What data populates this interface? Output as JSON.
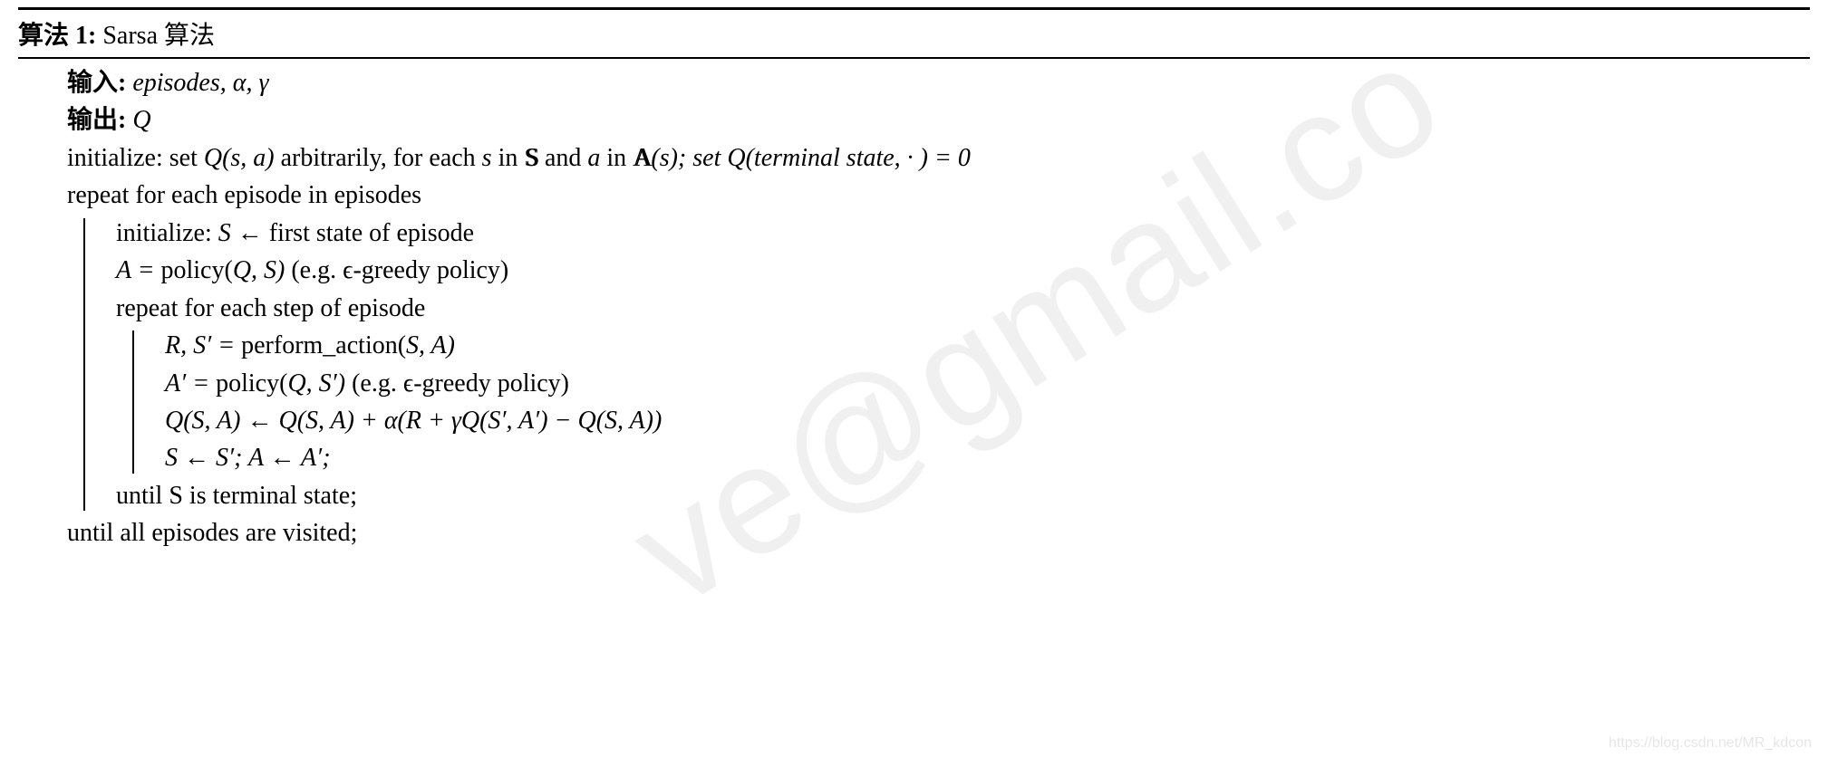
{
  "header": {
    "algo_label": "算法",
    "algo_num": "1:",
    "algo_name": "Sarsa 算法"
  },
  "io": {
    "input_label": "输入:",
    "input_value": "episodes, α,  γ",
    "output_label": "输出:",
    "output_value": "Q"
  },
  "lines": {
    "init_prefix": "initialize: set ",
    "init_q": "Q(s, a)",
    "init_mid": " arbitrarily, for each ",
    "init_s": "s",
    "init_in1": " in ",
    "init_and": " and ",
    "init_a": "a",
    "init_in2": " in ",
    "init_As": "(s);  set ",
    "init_qterm": "Q(terminal state, · ) = 0",
    "repeat_outer": "repeat for each episode in episodes",
    "init_S": "initialize: ",
    "init_S_expr": "S ← ",
    "init_S_rest": "first state of episode",
    "A_line_pre": "A = ",
    "A_line_policy": "policy(",
    "A_line_args": "Q, S)",
    "A_line_post": " (e.g. ϵ-greedy policy)",
    "repeat_inner": "repeat for each step of episode",
    "perf_pre": "R, S′ = ",
    "perf_fn": "perform_action(",
    "perf_args": "S, A)",
    "Aprime_pre": "A′ = ",
    "Aprime_policy": "policy(",
    "Aprime_args": "Q, S′)",
    "Aprime_post": " (e.g. ϵ-greedy policy)",
    "update": "Q(S, A) ← Q(S, A) + α(R + γQ(S′, A′) − Q(S, A))",
    "assign": "S ← S′; A ← A′;",
    "until_inner": "until S is terminal state;",
    "until_outer": "until all episodes are visited;"
  },
  "watermark": {
    "text": "ve@gmail.co",
    "footer": "https://blog.csdn.net/MR_kdcon"
  },
  "style": {
    "text_color": "#000000",
    "background_color": "#ffffff",
    "watermark_color": "rgba(0,0,0,0.06)",
    "footer_color": "rgba(0,0,0,0.10)",
    "rule_color": "#000000",
    "font_size_pt": 21,
    "watermark_font_size_pt": 128,
    "watermark_rotation_deg": -32
  }
}
